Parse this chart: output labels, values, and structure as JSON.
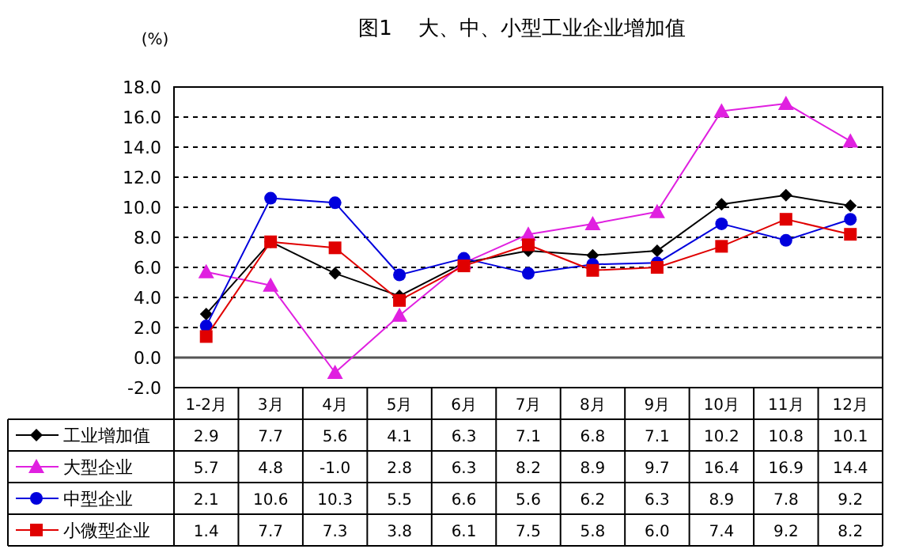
{
  "chart_data": {
    "type": "line",
    "title": "图1    大、中、小型工业企业增加值",
    "ylabel": "(%)",
    "categories": [
      "1-2月",
      "3月",
      "4月",
      "5月",
      "6月",
      "7月",
      "8月",
      "9月",
      "10月",
      "11月",
      "12月"
    ],
    "series": [
      {
        "name": "工业增加值",
        "color": "#000000",
        "marker": "diamond",
        "values": [
          2.9,
          7.7,
          5.6,
          4.1,
          6.3,
          7.1,
          6.8,
          7.1,
          10.2,
          10.8,
          10.1
        ],
        "value_labels": [
          "2.9",
          "7.7",
          "5.6",
          "4.1",
          "6.3",
          "7.1",
          "6.8",
          "7.1",
          "10.2",
          "10.8",
          "10.1"
        ]
      },
      {
        "name": "大型企业",
        "color": "#e020e0",
        "marker": "triangle",
        "values": [
          5.7,
          4.8,
          -1.0,
          2.8,
          6.3,
          8.2,
          8.9,
          9.7,
          16.4,
          16.9,
          14.4
        ],
        "value_labels": [
          "5.7",
          "4.8",
          "-1.0",
          "2.8",
          "6.3",
          "8.2",
          "8.9",
          "9.7",
          "16.4",
          "16.9",
          "14.4"
        ]
      },
      {
        "name": "中型企业",
        "color": "#0000dd",
        "marker": "circle",
        "values": [
          2.1,
          10.6,
          10.3,
          5.5,
          6.6,
          5.6,
          6.2,
          6.3,
          8.9,
          7.8,
          9.2
        ],
        "value_labels": [
          "2.1",
          "10.6",
          "10.3",
          "5.5",
          "6.6",
          "5.6",
          "6.2",
          "6.3",
          "8.9",
          "7.8",
          "9.2"
        ]
      },
      {
        "name": "小微型企业",
        "color": "#e00000",
        "marker": "square",
        "values": [
          1.4,
          7.7,
          7.3,
          3.8,
          6.1,
          7.5,
          5.8,
          6.0,
          7.4,
          9.2,
          8.2
        ],
        "value_labels": [
          "1.4",
          "7.7",
          "7.3",
          "3.8",
          "6.1",
          "7.5",
          "5.8",
          "6.0",
          "7.4",
          "9.2",
          "8.2"
        ]
      }
    ],
    "ylim": [
      -2,
      18
    ],
    "yticks": [
      {
        "value": -2,
        "label": "-2.0"
      },
      {
        "value": 0,
        "label": "0.0"
      },
      {
        "value": 2,
        "label": "2.0"
      },
      {
        "value": 4,
        "label": "4.0"
      },
      {
        "value": 6,
        "label": "6.0"
      },
      {
        "value": 8,
        "label": "8.0"
      },
      {
        "value": 10,
        "label": "10.0"
      },
      {
        "value": 12,
        "label": "12.0"
      },
      {
        "value": 14,
        "label": "14.0"
      },
      {
        "value": 16,
        "label": "16.0"
      },
      {
        "value": 18,
        "label": "18.0"
      }
    ],
    "grid": "y",
    "legend": "bottom",
    "line_style": "solid",
    "ref_lines": [
      {
        "axis": "y",
        "value": 0,
        "line_style": "solid"
      }
    ]
  }
}
